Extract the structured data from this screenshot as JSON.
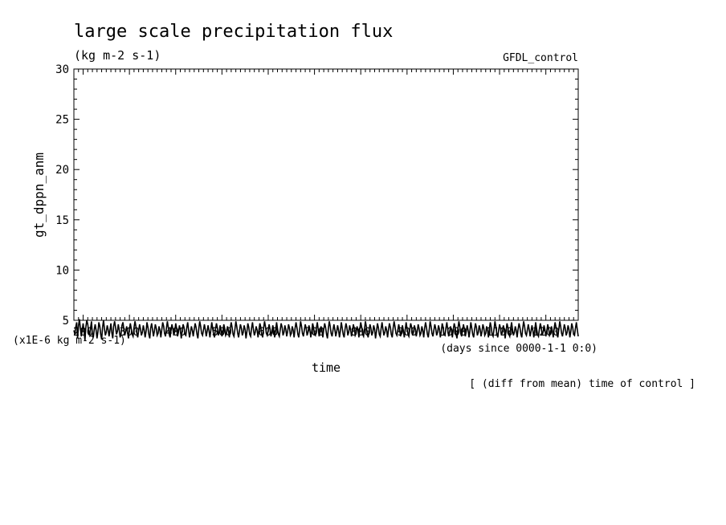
{
  "chart_data": {
    "type": "line",
    "title": "large scale precipitation flux",
    "units": "(kg m-2 s-1)",
    "run_label": "GFDL_control",
    "ylabel": "gt_dppn_anm",
    "yunits_note": "(x1E-6 kg m-2 s-1)",
    "xunits_note": "(days since 0000-1-1 0:0)",
    "xlabel": "time",
    "footer": "[ (diff from mean) time of control ]",
    "xlim": [
      180,
      1270
    ],
    "ylim": [
      5,
      30
    ],
    "xticks": [
      200,
      300,
      400,
      500,
      600,
      700,
      800,
      900,
      1000,
      1100,
      1200
    ],
    "yticks": [
      5,
      10,
      15,
      20,
      25,
      30
    ],
    "series": [
      {
        "x_start": 180,
        "x_step": 2,
        "values": [
          4.0,
          3.6,
          4.3,
          4.8,
          3.2,
          4.5,
          5.1,
          4.2,
          3.4,
          4.0,
          4.7,
          3.9,
          3.0,
          4.4,
          5.0,
          4.6,
          3.8,
          3.5,
          4.2,
          4.9,
          3.7,
          3.3,
          4.1,
          4.6,
          4.0,
          3.2,
          3.9,
          4.8,
          4.4,
          3.6,
          3.1,
          4.3,
          5.0,
          4.2,
          3.5,
          3.8,
          4.5,
          4.1,
          3.4,
          4.0,
          4.7,
          3.8,
          3.2,
          4.4,
          4.9,
          4.3,
          3.6,
          3.9,
          4.6,
          4.0,
          3.3,
          3.7,
          4.5,
          4.8,
          4.1,
          3.5,
          3.9,
          4.4,
          3.8,
          3.2,
          4.1,
          4.7,
          4.2,
          3.6,
          3.4,
          4.3,
          4.9,
          4.4,
          3.7,
          3.3,
          4.0,
          4.6,
          4.1,
          3.5,
          3.8,
          4.5,
          4.0,
          3.3,
          3.9,
          4.8,
          4.3,
          3.6,
          3.2,
          4.2,
          4.7,
          4.1,
          3.4,
          3.9,
          4.6,
          4.2,
          3.5,
          3.7,
          4.4,
          4.0,
          3.3,
          4.1,
          4.8,
          4.4,
          3.7,
          3.4,
          4.2,
          4.9,
          4.3,
          3.6,
          3.3,
          4.0,
          4.6,
          4.1,
          3.5,
          3.9,
          4.7,
          4.2,
          3.4,
          3.8,
          4.5,
          4.1,
          3.2,
          3.9,
          4.6,
          4.3,
          3.6,
          3.5,
          4.3,
          4.8,
          4.0,
          3.3,
          3.8,
          4.4,
          4.0,
          3.4,
          4.1,
          4.7,
          4.3,
          3.6,
          3.2,
          4.2,
          4.9,
          4.4,
          3.7,
          3.5,
          4.0,
          4.6,
          4.1,
          3.4,
          3.9,
          4.5,
          4.0,
          3.3,
          4.0,
          4.8,
          4.2,
          3.6,
          3.3,
          4.1,
          4.7,
          4.3,
          3.5,
          3.8,
          4.5,
          4.1,
          3.4,
          3.9,
          4.6,
          4.2,
          3.5,
          3.7,
          4.4,
          4.0,
          3.3,
          4.2,
          4.8,
          4.3,
          3.6,
          3.4,
          4.1,
          4.9,
          4.4,
          3.7,
          3.3,
          4.0,
          4.6,
          4.2,
          3.5,
          3.8,
          4.5,
          4.1,
          3.2,
          3.9,
          4.7,
          4.3,
          3.6,
          3.4,
          4.2,
          4.8,
          4.1,
          3.5,
          3.8,
          4.4,
          4.0,
          3.3,
          4.1,
          4.7,
          4.3,
          3.6,
          3.3,
          4.2,
          4.9,
          4.4,
          3.7,
          3.5,
          4.0,
          4.6,
          4.1,
          3.4,
          3.9,
          4.5,
          4.0,
          3.3,
          4.0,
          4.8,
          4.2,
          3.6,
          3.4,
          4.1,
          4.7,
          4.3,
          3.5,
          3.8,
          4.5,
          4.1,
          3.4,
          3.9,
          4.6,
          4.2,
          3.5,
          3.7,
          4.4,
          4.0,
          3.3,
          4.2,
          4.8,
          4.3,
          3.6,
          3.3,
          4.1,
          4.9,
          4.4,
          3.7,
          3.4,
          4.0,
          4.6,
          4.2,
          3.5,
          3.8,
          4.5,
          4.1,
          3.3,
          3.9,
          4.7,
          4.3,
          3.6,
          3.5,
          4.2,
          4.8,
          4.1,
          3.4,
          3.8,
          4.4,
          4.0,
          3.3,
          4.1,
          4.7,
          4.3,
          3.6,
          3.2,
          4.2,
          4.9,
          4.4,
          3.7,
          3.4,
          4.0,
          4.6,
          4.1,
          3.4,
          3.9,
          4.5,
          4.0,
          3.3,
          4.0,
          4.8,
          4.2,
          3.6,
          3.3,
          4.1,
          4.7,
          4.3,
          3.5,
          3.8,
          4.5,
          4.1,
          3.4,
          3.9,
          4.6,
          4.2,
          3.5,
          3.7,
          4.4,
          4.0,
          3.3,
          4.2,
          4.8,
          4.3,
          3.6,
          3.4,
          4.1,
          4.9,
          4.4,
          3.7,
          3.3,
          4.0,
          4.6,
          4.2,
          3.5,
          3.8,
          4.5,
          4.1,
          3.2,
          3.9,
          4.7,
          4.3,
          3.6,
          3.4,
          4.2,
          4.8,
          4.1,
          3.5,
          3.8,
          4.4,
          4.0,
          3.3,
          4.1,
          4.7,
          4.3,
          3.6,
          3.3,
          4.2,
          4.9,
          4.4,
          3.7,
          3.5,
          4.0,
          4.6,
          4.1,
          3.4,
          3.9,
          4.5,
          4.0,
          3.3,
          4.0,
          4.8,
          4.2,
          3.6,
          3.4,
          4.1,
          4.7,
          4.3,
          3.5,
          3.8,
          4.5,
          4.1,
          3.4,
          3.9,
          4.6,
          4.2,
          3.5,
          3.7,
          4.4,
          4.0,
          3.3,
          4.2,
          4.8,
          4.3,
          3.6,
          3.3,
          4.1,
          4.9,
          4.4,
          3.7,
          3.4,
          4.0,
          4.6,
          4.2,
          3.5,
          3.8,
          4.5,
          4.1,
          3.3,
          3.9,
          4.7,
          4.3,
          3.6,
          3.5,
          4.2,
          4.8,
          4.1,
          3.4,
          3.8,
          4.4,
          4.0,
          3.3,
          4.1,
          4.7,
          4.3,
          3.6,
          3.2,
          4.2,
          4.9,
          4.4,
          3.7,
          3.4,
          4.0,
          4.6,
          4.1,
          3.4,
          3.9,
          4.5,
          4.0,
          3.3,
          4.0,
          4.8,
          4.2,
          3.6,
          3.3,
          4.1,
          4.7,
          4.3,
          3.5,
          3.8,
          4.5,
          4.1,
          3.4,
          3.9,
          4.6,
          4.2,
          3.5,
          3.7,
          4.4,
          4.0,
          3.3,
          4.2,
          4.8,
          4.3,
          3.6,
          3.4,
          4.1,
          4.9,
          4.4,
          3.7,
          3.3,
          4.0,
          4.6,
          4.2,
          3.5,
          3.8,
          4.5,
          4.1,
          3.2,
          3.9,
          4.7,
          4.3,
          3.6,
          3.4,
          4.2,
          4.8,
          4.1,
          3.5,
          3.8,
          4.4,
          4.0,
          3.3,
          4.1,
          4.7,
          4.3,
          3.6,
          3.3,
          4.2,
          4.9,
          4.4,
          3.7,
          3.5,
          4.0,
          4.6,
          4.1,
          3.4,
          3.9,
          4.5,
          4.0,
          3.3,
          4.0,
          4.8,
          4.2,
          3.6,
          3.4,
          4.1,
          4.7,
          4.3,
          3.5,
          3.8,
          4.5,
          4.1,
          3.4,
          3.9,
          4.6,
          4.2,
          3.5,
          3.7,
          4.4,
          4.0,
          3.3,
          4.2,
          4.8,
          4.3,
          3.6,
          3.3,
          4.1,
          4.9,
          4.4,
          3.7,
          3.4,
          4.0,
          4.6,
          4.2,
          3.5,
          3.8,
          4.5,
          4.1,
          3.3,
          3.9,
          4.7,
          4.3,
          3.6,
          3.5,
          4.2,
          4.8,
          4.1,
          3.4
        ]
      }
    ],
    "grid": false,
    "minor_ticks_per_major_x": 10,
    "minor_ticks_per_major_y": 5
  }
}
